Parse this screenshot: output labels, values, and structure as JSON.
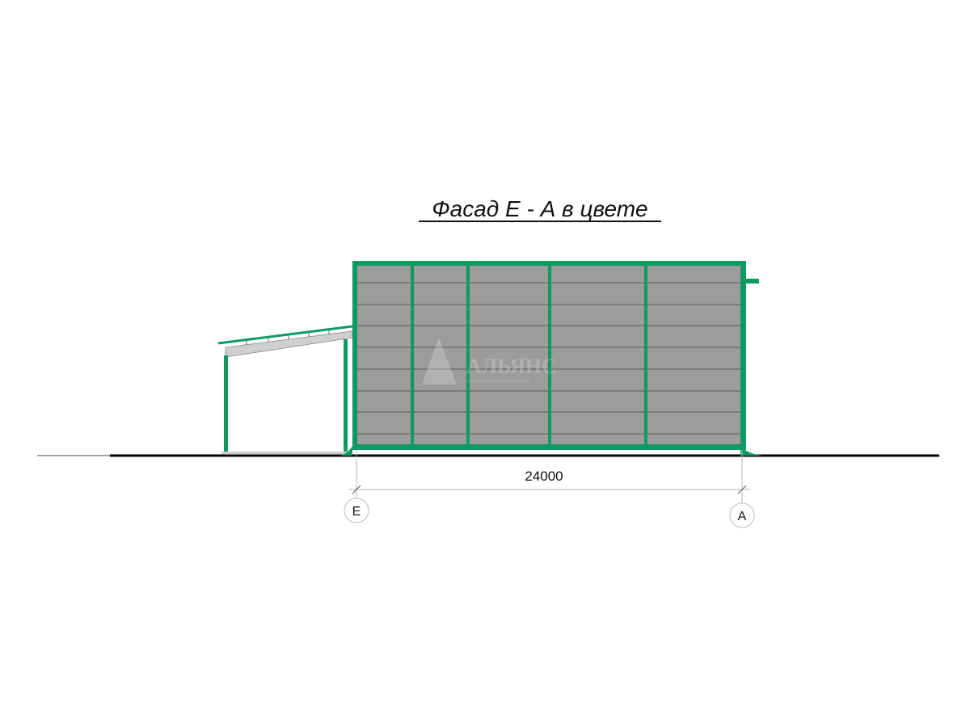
{
  "title": "Фасад Е - А в цвете",
  "dimension": {
    "value": "24000"
  },
  "axes": [
    {
      "label": "Е"
    },
    {
      "label": "А"
    }
  ],
  "watermark": {
    "brand": "АЛЬЯНС",
    "tagline": "строительная компания"
  },
  "colors": {
    "frame": "#0f9a63",
    "cladding": "#9c9c9c",
    "panel_line": "#5a5a5a",
    "canopy_beam": "#cfcfcf",
    "ground": "#000000",
    "dimension_line": "#b5b5b5"
  }
}
